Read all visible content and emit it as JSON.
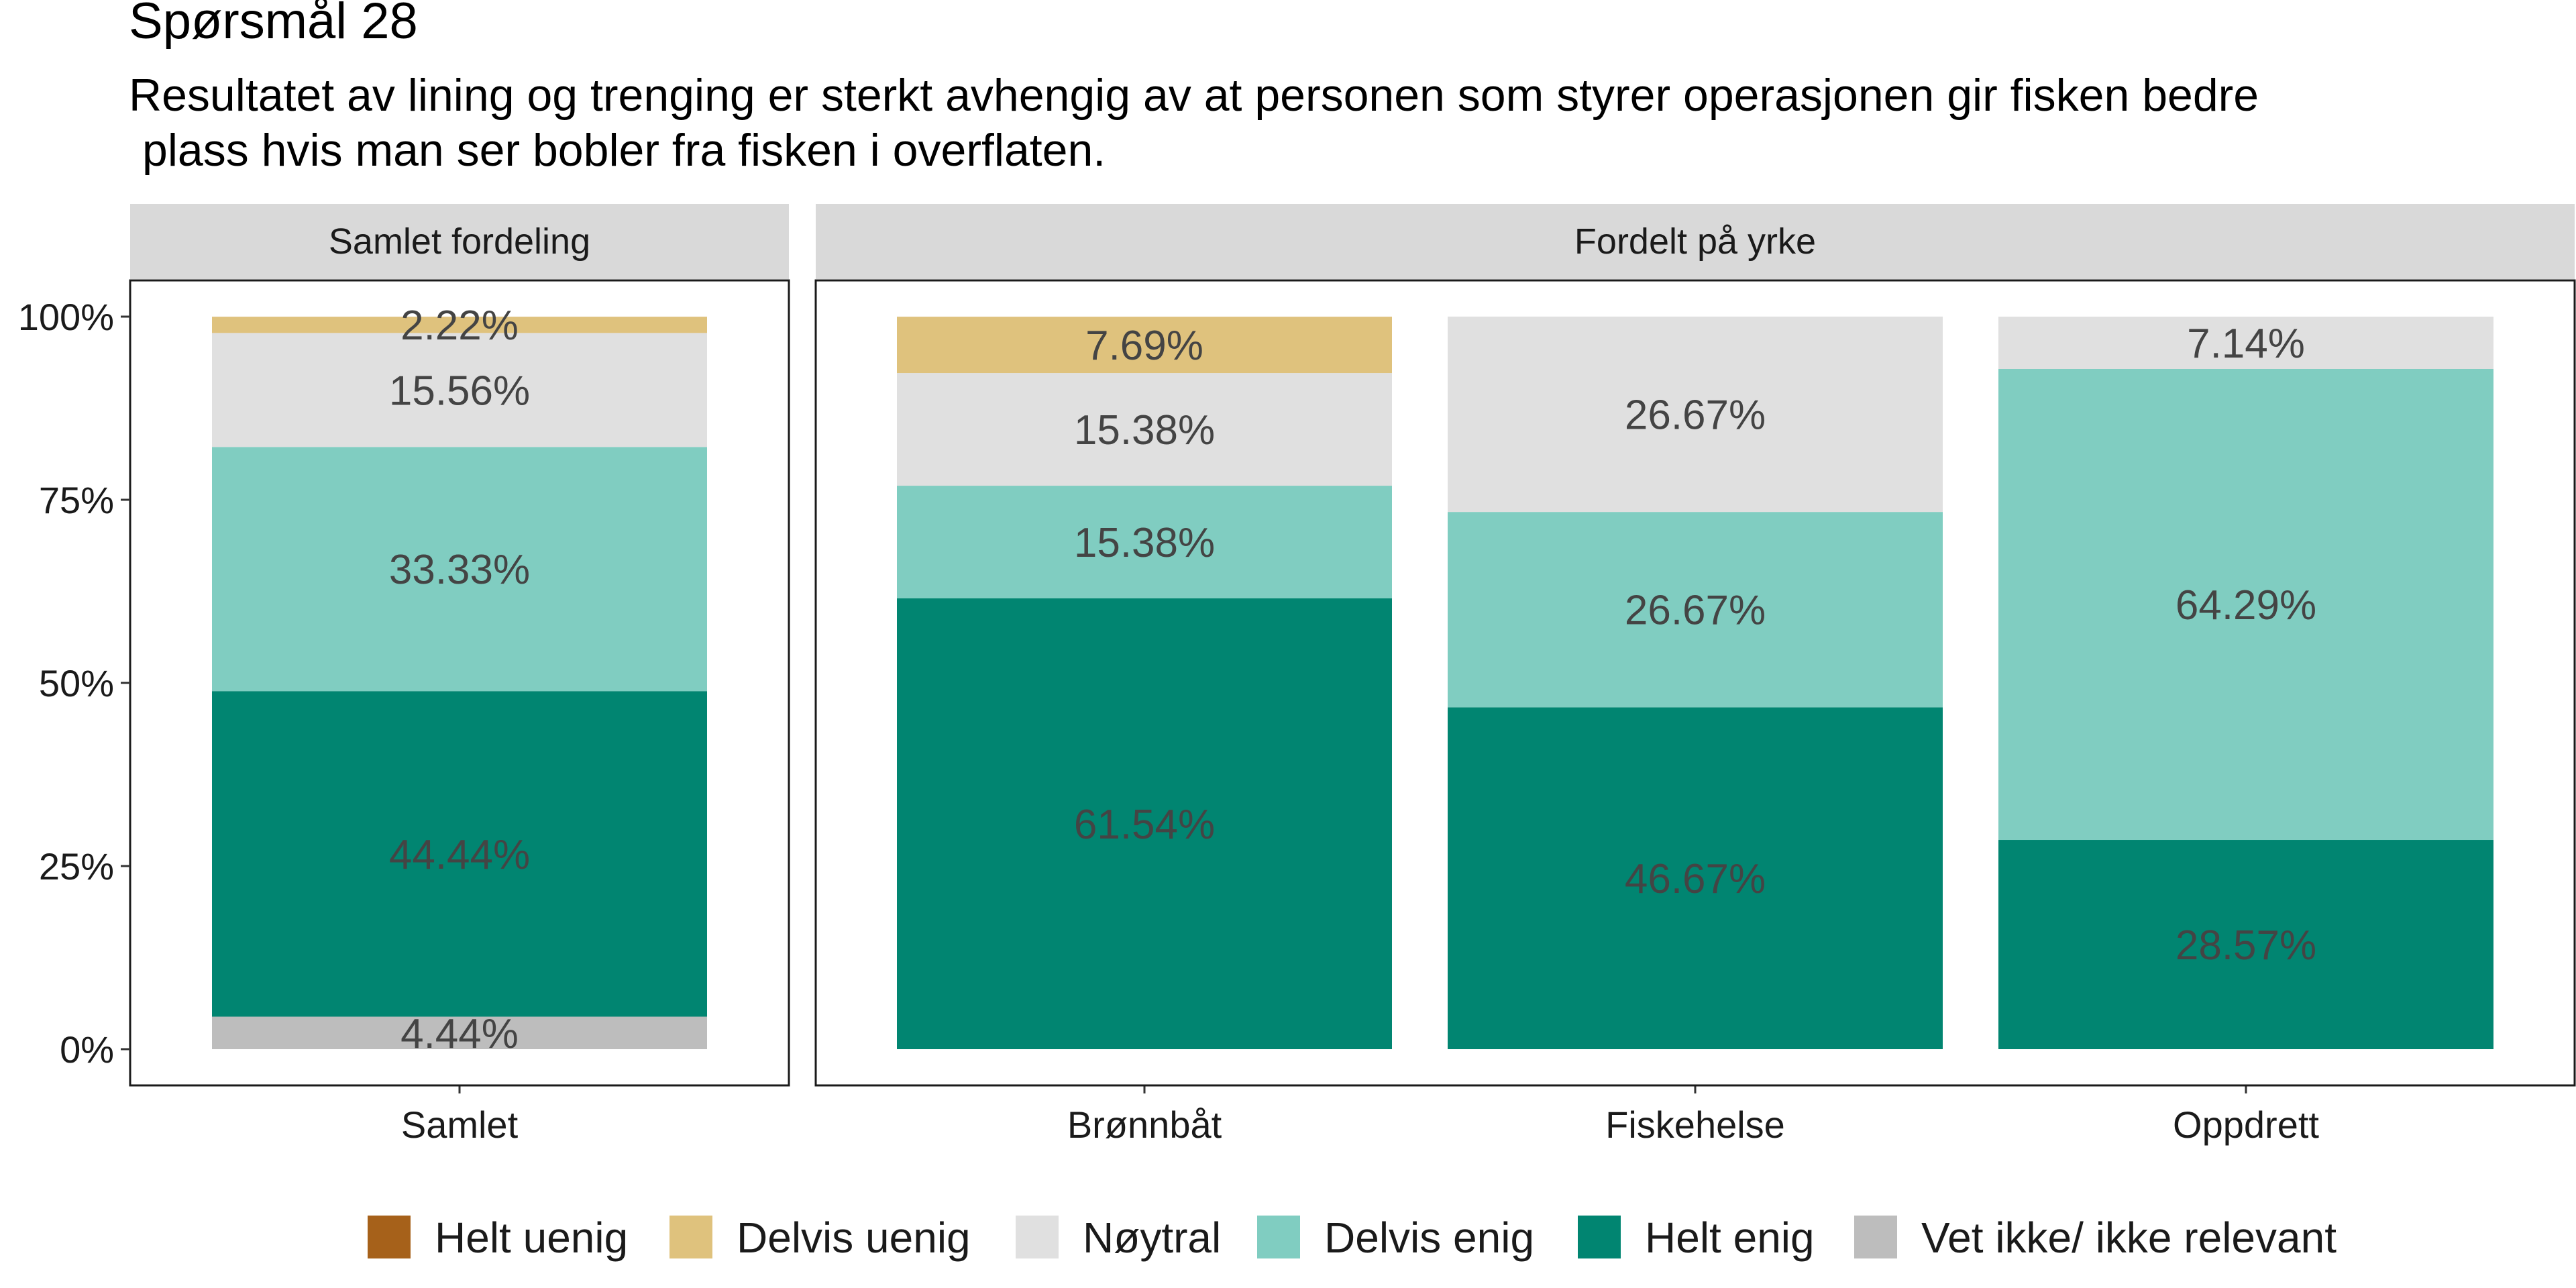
{
  "chart_data": {
    "type": "bar",
    "stacked": true,
    "title": "Spørsmål 28",
    "subtitle_lines": [
      "Resultatet av lining og trenging er sterkt avhengig av at personen som styrer operasjonen gir fisken bedre",
      "plass hvis man ser bobler fra fisken i overflaten."
    ],
    "ylim": [
      0,
      1
    ],
    "yticks": [
      {
        "value": 0,
        "label": "0%"
      },
      {
        "value": 0.25,
        "label": "25%"
      },
      {
        "value": 0.5,
        "label": "50%"
      },
      {
        "value": 0.75,
        "label": "75%"
      },
      {
        "value": 1,
        "label": "100%"
      }
    ],
    "series_order": [
      "Vet ikke/ ikke relevant",
      "Helt enig",
      "Delvis enig",
      "Nøytral",
      "Delvis uenig",
      "Helt uenig"
    ],
    "colors": {
      "Helt uenig": "#A6611A",
      "Delvis uenig": "#DFC27D",
      "Nøytral": "#E0E0E0",
      "Delvis enig": "#80CDC1",
      "Helt enig": "#018571",
      "Vet ikke/ ikke relevant": "#BDBDBD"
    },
    "legend": {
      "position": "bottom",
      "entries": [
        "Helt uenig",
        "Delvis uenig",
        "Nøytral",
        "Delvis enig",
        "Helt enig",
        "Vet ikke/ ikke relevant"
      ]
    },
    "panels": [
      {
        "strip": "Samlet fordeling",
        "categories": [
          {
            "name": "Samlet",
            "segments": [
              {
                "series": "Vet ikke/ ikke relevant",
                "value": 4.44,
                "label": "4.44%"
              },
              {
                "series": "Helt enig",
                "value": 44.44,
                "label": "44.44%"
              },
              {
                "series": "Delvis enig",
                "value": 33.33,
                "label": "33.33%"
              },
              {
                "series": "Nøytral",
                "value": 15.56,
                "label": "15.56%"
              },
              {
                "series": "Delvis uenig",
                "value": 2.22,
                "label": "2.22%"
              }
            ]
          }
        ]
      },
      {
        "strip": "Fordelt på yrke",
        "categories": [
          {
            "name": "Brønnbåt",
            "segments": [
              {
                "series": "Helt enig",
                "value": 61.54,
                "label": "61.54%"
              },
              {
                "series": "Delvis enig",
                "value": 15.38,
                "label": "15.38%"
              },
              {
                "series": "Nøytral",
                "value": 15.38,
                "label": "15.38%"
              },
              {
                "series": "Delvis uenig",
                "value": 7.69,
                "label": "7.69%"
              }
            ]
          },
          {
            "name": "Fiskehelse",
            "segments": [
              {
                "series": "Helt enig",
                "value": 46.67,
                "label": "46.67%"
              },
              {
                "series": "Delvis enig",
                "value": 26.67,
                "label": "26.67%"
              },
              {
                "series": "Nøytral",
                "value": 26.67,
                "label": "26.67%"
              }
            ]
          },
          {
            "name": "Oppdrett",
            "segments": [
              {
                "series": "Helt enig",
                "value": 28.57,
                "label": "28.57%"
              },
              {
                "series": "Delvis enig",
                "value": 64.29,
                "label": "64.29%"
              },
              {
                "series": "Nøytral",
                "value": 7.14,
                "label": "7.14%"
              }
            ]
          }
        ]
      }
    ]
  }
}
